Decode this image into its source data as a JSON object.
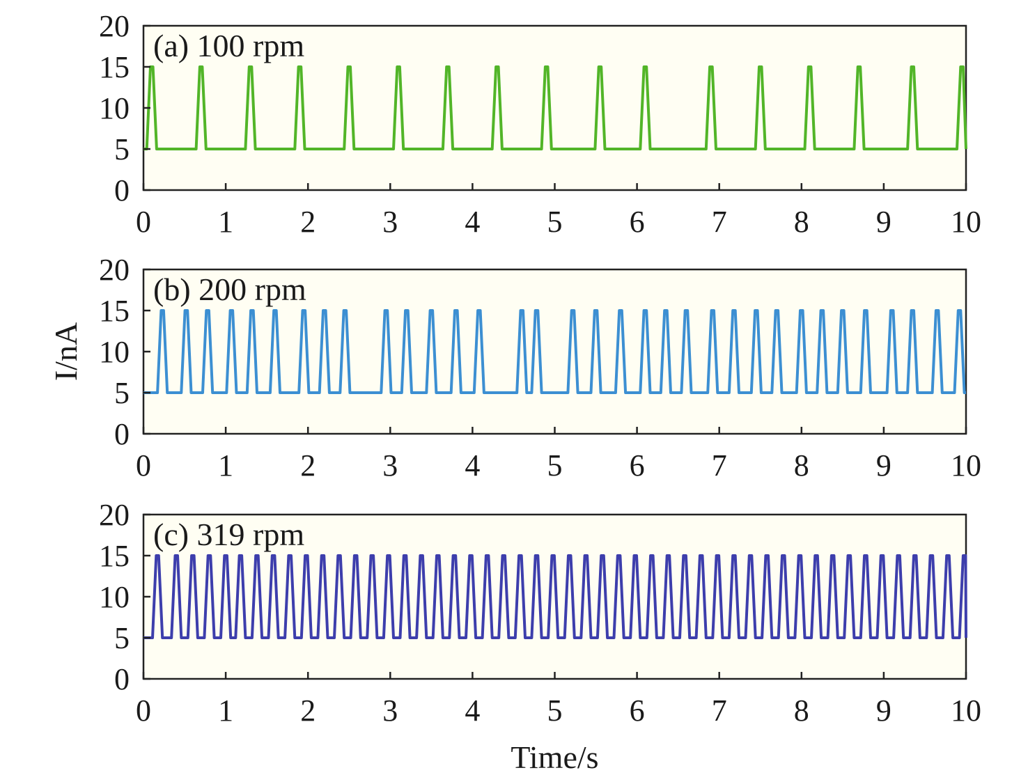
{
  "chart_data": [
    {
      "type": "line",
      "title": "(a) 100 rpm",
      "xlabel": "",
      "ylabel": "",
      "xlim": [
        0,
        10
      ],
      "ylim": [
        0,
        20
      ],
      "xticks": [
        "0",
        "1",
        "2",
        "3",
        "4",
        "5",
        "6",
        "7",
        "8",
        "9",
        "10"
      ],
      "yticks": [
        "0",
        "5",
        "10",
        "15",
        "20"
      ],
      "color": "#52b528",
      "baseline": 5,
      "peak": 15,
      "peak_times": [
        0.1,
        0.7,
        1.3,
        1.9,
        2.5,
        3.1,
        3.7,
        4.3,
        4.9,
        5.55,
        6.1,
        6.9,
        7.5,
        8.1,
        8.7,
        9.35,
        9.95
      ]
    },
    {
      "type": "line",
      "title": "(b) 200 rpm",
      "xlabel": "",
      "ylabel": "I/nA",
      "xlim": [
        0,
        10
      ],
      "ylim": [
        0,
        20
      ],
      "xticks": [
        "0",
        "1",
        "2",
        "3",
        "4",
        "5",
        "6",
        "7",
        "8",
        "9",
        "10"
      ],
      "yticks": [
        "0",
        "5",
        "10",
        "15",
        "20"
      ],
      "color": "#3c8fd2",
      "baseline": 5,
      "peak": 15,
      "peak_times": [
        0.23,
        0.52,
        0.78,
        1.07,
        1.32,
        1.6,
        1.95,
        2.2,
        2.45,
        2.95,
        3.2,
        3.5,
        3.8,
        4.08,
        4.6,
        4.78,
        5.22,
        5.5,
        5.8,
        6.1,
        6.35,
        6.6,
        6.92,
        7.18,
        7.45,
        7.7,
        8.0,
        8.25,
        8.5,
        8.78,
        9.1,
        9.35,
        9.65,
        9.92
      ]
    },
    {
      "type": "line",
      "title": "(c) 319 rpm",
      "xlabel": "Time/s",
      "ylabel": "",
      "xlim": [
        0,
        10
      ],
      "ylim": [
        0,
        20
      ],
      "xticks": [
        "0",
        "1",
        "2",
        "3",
        "4",
        "5",
        "6",
        "7",
        "8",
        "9",
        "10"
      ],
      "yticks": [
        "0",
        "5",
        "10",
        "15",
        "20"
      ],
      "color": "#3d3eac",
      "baseline": 5,
      "peak": 15,
      "peak_times": [
        0.17,
        0.4,
        0.6,
        0.8,
        1.0,
        1.18,
        1.38,
        1.58,
        1.78,
        1.98,
        2.18,
        2.38,
        2.58,
        2.78,
        2.98,
        3.18,
        3.38,
        3.58,
        3.78,
        3.98,
        4.18,
        4.38,
        4.58,
        4.78,
        4.98,
        5.18,
        5.38,
        5.58,
        5.78,
        5.98,
        6.18,
        6.38,
        6.58,
        6.78,
        6.98,
        7.18,
        7.38,
        7.58,
        7.78,
        7.98,
        8.18,
        8.38,
        8.58,
        8.78,
        8.98,
        9.18,
        9.38,
        9.58,
        9.78,
        9.98
      ]
    }
  ]
}
